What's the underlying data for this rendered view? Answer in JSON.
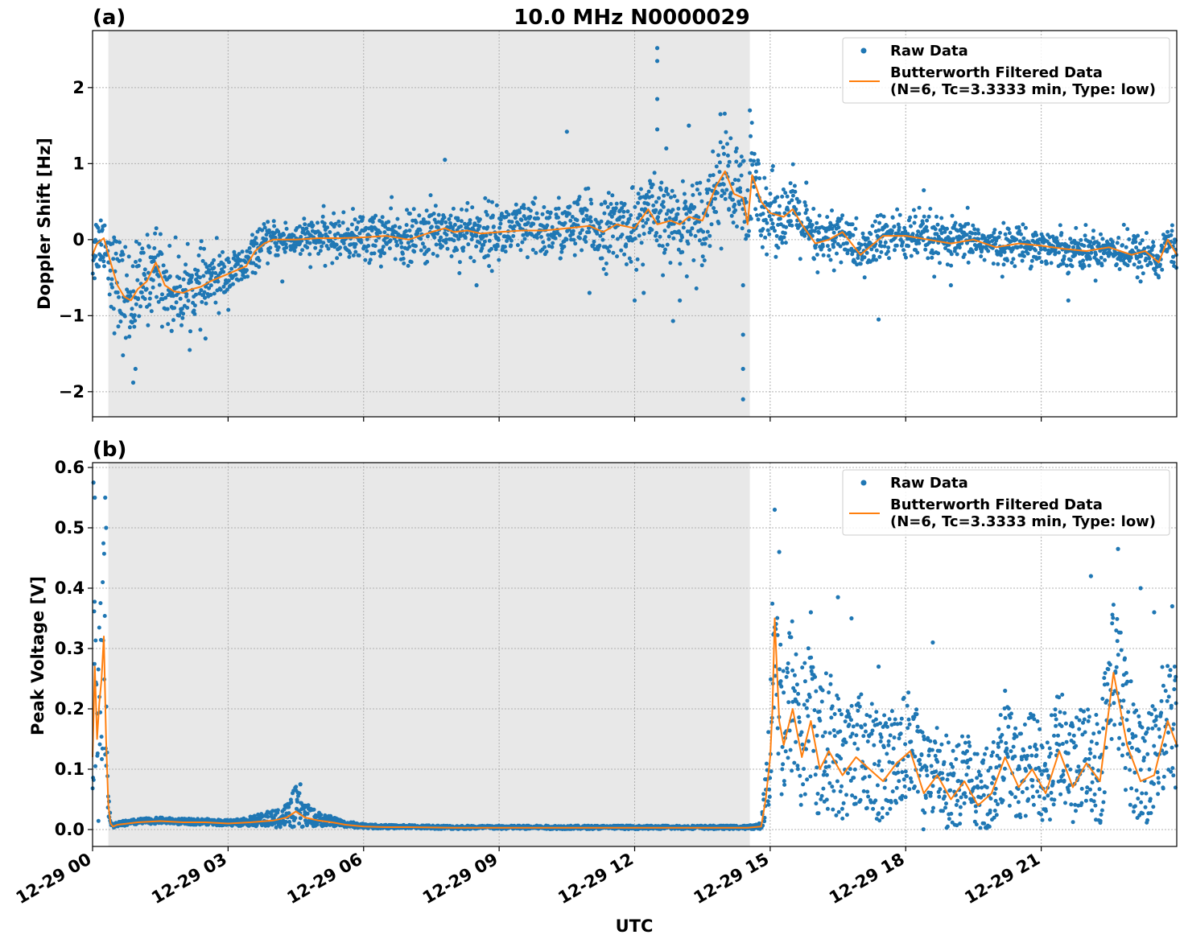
{
  "figure": {
    "title": "10.0 MHz N0000029",
    "xlabel": "UTC"
  },
  "colors": {
    "raw": "#1f77b4",
    "filtered": "#ff7f0e",
    "shade": "#e8e8e8"
  },
  "chart_data": [
    {
      "type": "scatter",
      "panel_label": "(a)",
      "title": "10.0 MHz N0000029",
      "ylabel": "Doppler Shift [Hz]",
      "xlabel": "",
      "x_unit": "hours since 12-29 00 UTC",
      "xlim": [
        0,
        24
      ],
      "ylim": [
        -2.33,
        2.75
      ],
      "x_ticks": [
        0,
        3,
        6,
        9,
        12,
        15,
        18,
        21
      ],
      "y_ticks": [
        -2,
        -1,
        0,
        1,
        2
      ],
      "y_tick_labels": [
        "−2",
        "−1",
        "0",
        "1",
        "2"
      ],
      "grid": true,
      "legend_position": "top-right",
      "shaded_region": [
        0.35,
        14.55
      ],
      "legend": {
        "raw": "Raw Data",
        "filtered_line1": "Butterworth Filtered Data",
        "filtered_line2": "(N=6, Tc=3.3333 min, Type: low)"
      },
      "series": [
        {
          "name": "Butterworth Filtered Data",
          "x": [
            0,
            0.1,
            0.25,
            0.4,
            0.55,
            0.7,
            0.85,
            1.0,
            1.2,
            1.4,
            1.6,
            1.8,
            2.0,
            2.2,
            2.4,
            2.6,
            2.8,
            3.0,
            3.2,
            3.4,
            3.6,
            3.8,
            4.0,
            4.5,
            5.0,
            5.5,
            6.0,
            6.5,
            7.0,
            7.5,
            7.8,
            8.0,
            8.3,
            8.6,
            9.0,
            9.5,
            10.0,
            10.5,
            11.0,
            11.3,
            11.6,
            12.0,
            12.3,
            12.5,
            12.8,
            13.0,
            13.2,
            13.5,
            13.8,
            14.0,
            14.2,
            14.4,
            14.5,
            14.6,
            14.8,
            15.0,
            15.3,
            15.5,
            15.7,
            16.0,
            16.3,
            16.6,
            17.0,
            17.5,
            18.0,
            18.5,
            19.0,
            19.5,
            20.0,
            20.5,
            21.0,
            21.5,
            22.0,
            22.5,
            23.0,
            23.3,
            23.6,
            23.8,
            24.0
          ],
          "y": [
            -0.2,
            -0.05,
            0.02,
            -0.3,
            -0.6,
            -0.75,
            -0.8,
            -0.65,
            -0.55,
            -0.3,
            -0.6,
            -0.68,
            -0.7,
            -0.65,
            -0.62,
            -0.55,
            -0.5,
            -0.45,
            -0.4,
            -0.35,
            -0.15,
            -0.05,
            0.0,
            0.0,
            0.02,
            0.02,
            0.03,
            0.05,
            0.0,
            0.1,
            0.15,
            0.1,
            0.12,
            0.08,
            0.1,
            0.12,
            0.12,
            0.15,
            0.18,
            0.1,
            0.2,
            0.15,
            0.4,
            0.2,
            0.25,
            0.2,
            0.3,
            0.25,
            0.7,
            0.9,
            0.6,
            0.55,
            0.2,
            0.85,
            0.5,
            0.35,
            0.3,
            0.4,
            0.2,
            -0.05,
            0.0,
            0.1,
            -0.2,
            0.05,
            0.05,
            0.0,
            -0.05,
            0.0,
            -0.1,
            -0.05,
            -0.08,
            -0.12,
            -0.15,
            -0.1,
            -0.2,
            -0.15,
            -0.3,
            0.0,
            -0.2
          ]
        },
        {
          "name": "Raw Data",
          "spread": [
            0.45,
            0.4,
            0.35,
            0.55,
            0.6,
            0.65,
            0.6,
            0.55,
            0.5,
            0.5,
            0.5,
            0.45,
            0.45,
            0.4,
            0.4,
            0.35,
            0.35,
            0.3,
            0.25,
            0.25,
            0.22,
            0.2,
            0.2,
            0.22,
            0.25,
            0.25,
            0.3,
            0.3,
            0.3,
            0.35,
            0.35,
            0.35,
            0.35,
            0.35,
            0.35,
            0.35,
            0.35,
            0.35,
            0.4,
            0.4,
            0.4,
            0.45,
            0.5,
            0.5,
            0.45,
            0.45,
            0.5,
            0.5,
            0.55,
            0.6,
            0.6,
            0.6,
            0.7,
            0.65,
            0.5,
            0.45,
            0.4,
            0.4,
            0.35,
            0.35,
            0.35,
            0.3,
            0.3,
            0.3,
            0.3,
            0.3,
            0.25,
            0.25,
            0.22,
            0.22,
            0.22,
            0.22,
            0.22,
            0.22,
            0.25,
            0.25,
            0.25,
            0.25,
            0.25
          ],
          "outliers": [
            {
              "x": 0.9,
              "y": -1.88
            },
            {
              "x": 0.95,
              "y": -1.7
            },
            {
              "x": 1.75,
              "y": -1.2
            },
            {
              "x": 2.5,
              "y": -1.3
            },
            {
              "x": 4.2,
              "y": -0.55
            },
            {
              "x": 7.8,
              "y": 1.05
            },
            {
              "x": 8.5,
              "y": -0.6
            },
            {
              "x": 10.5,
              "y": 1.42
            },
            {
              "x": 11.0,
              "y": -0.7
            },
            {
              "x": 12.0,
              "y": -0.8
            },
            {
              "x": 12.2,
              "y": -0.7
            },
            {
              "x": 12.5,
              "y": 2.52
            },
            {
              "x": 12.5,
              "y": 2.35
            },
            {
              "x": 12.5,
              "y": 1.85
            },
            {
              "x": 12.5,
              "y": 1.45
            },
            {
              "x": 12.7,
              "y": 1.2
            },
            {
              "x": 12.85,
              "y": -1.07
            },
            {
              "x": 13.0,
              "y": -0.8
            },
            {
              "x": 13.2,
              "y": 1.5
            },
            {
              "x": 13.9,
              "y": 1.65
            },
            {
              "x": 14.4,
              "y": -2.1
            },
            {
              "x": 14.4,
              "y": -1.7
            },
            {
              "x": 14.4,
              "y": -1.25
            },
            {
              "x": 14.4,
              "y": -0.6
            },
            {
              "x": 14.55,
              "y": 1.7
            },
            {
              "x": 15.8,
              "y": 0.75
            },
            {
              "x": 17.4,
              "y": -1.05
            },
            {
              "x": 18.4,
              "y": 0.65
            },
            {
              "x": 19.0,
              "y": -0.6
            },
            {
              "x": 21.6,
              "y": -0.8
            },
            {
              "x": 23.2,
              "y": -0.55
            }
          ]
        }
      ]
    },
    {
      "type": "scatter",
      "panel_label": "(b)",
      "title": "",
      "ylabel": "Peak Voltage [V]",
      "xlabel": "UTC",
      "x_unit": "hours since 12-29 00 UTC",
      "xlim": [
        0,
        24
      ],
      "ylim": [
        -0.028,
        0.608
      ],
      "x_ticks": [
        0,
        3,
        6,
        9,
        12,
        15,
        18,
        21
      ],
      "x_tick_labels": [
        "12-29 00",
        "12-29 03",
        "12-29 06",
        "12-29 09",
        "12-29 12",
        "12-29 15",
        "12-29 18",
        "12-29 21"
      ],
      "y_ticks": [
        0.0,
        0.1,
        0.2,
        0.3,
        0.4,
        0.5,
        0.6
      ],
      "y_tick_labels": [
        "0.0",
        "0.1",
        "0.2",
        "0.3",
        "0.4",
        "0.5",
        "0.6"
      ],
      "grid": true,
      "legend_position": "top-right",
      "shaded_region": [
        0.35,
        14.55
      ],
      "legend": {
        "raw": "Raw Data",
        "filtered_line1": "Butterworth Filtered Data",
        "filtered_line2": "(N=6, Tc=3.3333 min, Type: low)"
      },
      "series": [
        {
          "name": "Butterworth Filtered Data",
          "x": [
            0,
            0.05,
            0.1,
            0.15,
            0.2,
            0.25,
            0.3,
            0.35,
            0.4,
            0.45,
            0.55,
            1.0,
            1.5,
            2.0,
            2.5,
            3.0,
            3.5,
            4.0,
            4.3,
            4.5,
            4.7,
            5.0,
            5.3,
            5.6,
            6.0,
            6.5,
            7.0,
            8.0,
            9.0,
            10.0,
            11.0,
            12.0,
            13.0,
            14.0,
            14.5,
            14.8,
            14.9,
            15.0,
            15.05,
            15.1,
            15.2,
            15.3,
            15.5,
            15.7,
            15.9,
            16.1,
            16.3,
            16.6,
            16.9,
            17.2,
            17.5,
            17.8,
            18.1,
            18.4,
            18.7,
            19.0,
            19.3,
            19.6,
            19.9,
            20.2,
            20.5,
            20.8,
            21.1,
            21.4,
            21.7,
            22.0,
            22.3,
            22.6,
            22.9,
            23.2,
            23.5,
            23.8,
            24.0
          ],
          "y": [
            0.12,
            0.27,
            0.15,
            0.21,
            0.25,
            0.32,
            0.15,
            0.04,
            0.01,
            0.005,
            0.008,
            0.012,
            0.014,
            0.012,
            0.012,
            0.01,
            0.012,
            0.015,
            0.02,
            0.03,
            0.02,
            0.015,
            0.012,
            0.008,
            0.005,
            0.004,
            0.004,
            0.003,
            0.003,
            0.003,
            0.003,
            0.003,
            0.003,
            0.003,
            0.003,
            0.005,
            0.05,
            0.12,
            0.2,
            0.35,
            0.18,
            0.14,
            0.2,
            0.12,
            0.18,
            0.1,
            0.13,
            0.09,
            0.12,
            0.1,
            0.08,
            0.11,
            0.13,
            0.06,
            0.09,
            0.05,
            0.08,
            0.04,
            0.06,
            0.12,
            0.07,
            0.1,
            0.06,
            0.13,
            0.07,
            0.11,
            0.08,
            0.26,
            0.14,
            0.08,
            0.09,
            0.18,
            0.14
          ]
        },
        {
          "name": "Raw Data",
          "spread": [
            0.1,
            0.2,
            0.25,
            0.2,
            0.2,
            0.15,
            0.1,
            0.02,
            0.005,
            0.004,
            0.004,
            0.005,
            0.005,
            0.005,
            0.005,
            0.005,
            0.008,
            0.015,
            0.02,
            0.035,
            0.02,
            0.012,
            0.008,
            0.005,
            0.004,
            0.003,
            0.003,
            0.003,
            0.003,
            0.003,
            0.003,
            0.003,
            0.003,
            0.003,
            0.003,
            0.005,
            0.05,
            0.1,
            0.15,
            0.15,
            0.15,
            0.14,
            0.14,
            0.13,
            0.12,
            0.12,
            0.12,
            0.1,
            0.1,
            0.1,
            0.09,
            0.09,
            0.09,
            0.08,
            0.08,
            0.08,
            0.08,
            0.07,
            0.07,
            0.08,
            0.08,
            0.08,
            0.08,
            0.09,
            0.09,
            0.09,
            0.1,
            0.12,
            0.11,
            0.1,
            0.1,
            0.11,
            0.1
          ],
          "outliers": [
            {
              "x": 0.02,
              "y": 0.575
            },
            {
              "x": 0.05,
              "y": 0.55
            },
            {
              "x": 0.28,
              "y": 0.55
            },
            {
              "x": 0.3,
              "y": 0.5
            },
            {
              "x": 4.6,
              "y": 0.075
            },
            {
              "x": 15.1,
              "y": 0.53
            },
            {
              "x": 15.2,
              "y": 0.46
            },
            {
              "x": 15.9,
              "y": 0.36
            },
            {
              "x": 16.5,
              "y": 0.385
            },
            {
              "x": 16.8,
              "y": 0.35
            },
            {
              "x": 17.4,
              "y": 0.27
            },
            {
              "x": 18.6,
              "y": 0.31
            },
            {
              "x": 20.2,
              "y": 0.23
            },
            {
              "x": 22.1,
              "y": 0.42
            },
            {
              "x": 22.7,
              "y": 0.465
            },
            {
              "x": 23.2,
              "y": 0.4
            },
            {
              "x": 23.5,
              "y": 0.36
            },
            {
              "x": 23.9,
              "y": 0.37
            }
          ]
        }
      ]
    }
  ]
}
